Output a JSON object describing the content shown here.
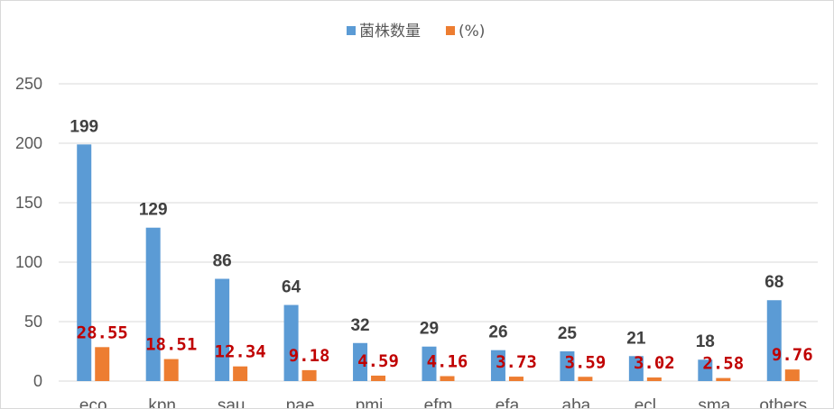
{
  "chart_data": {
    "type": "bar",
    "title": "",
    "xlabel": "",
    "ylabel": "",
    "ylim": [
      0,
      250
    ],
    "yticks": [
      0,
      50,
      100,
      150,
      200,
      250
    ],
    "grid": true,
    "legend_position": "top-center",
    "categories": [
      "eco",
      "kpn",
      "sau",
      "pae",
      "pmi",
      "efm",
      "efa",
      "aba",
      "ecl",
      "sma",
      "others"
    ],
    "series": [
      {
        "name": "菌株数量",
        "color": "#5b9bd5",
        "label_color": "#404040",
        "values": [
          199,
          129,
          86,
          64,
          32,
          29,
          26,
          25,
          21,
          18,
          68
        ],
        "labels": [
          "199",
          "129",
          "86",
          "64",
          "32",
          "29",
          "26",
          "25",
          "21",
          "18",
          "68"
        ]
      },
      {
        "name": "(%)",
        "color": "#ed7d31",
        "label_color": "#c00000",
        "values": [
          28.55,
          18.51,
          12.34,
          9.18,
          4.59,
          4.16,
          3.73,
          3.59,
          3.02,
          2.58,
          9.76
        ],
        "labels": [
          "28.55",
          "18.51",
          "12.34",
          "9.18",
          "4.59",
          "4.16",
          "3.73",
          "3.59",
          "3.02",
          "2.58",
          "9.76"
        ]
      }
    ]
  }
}
